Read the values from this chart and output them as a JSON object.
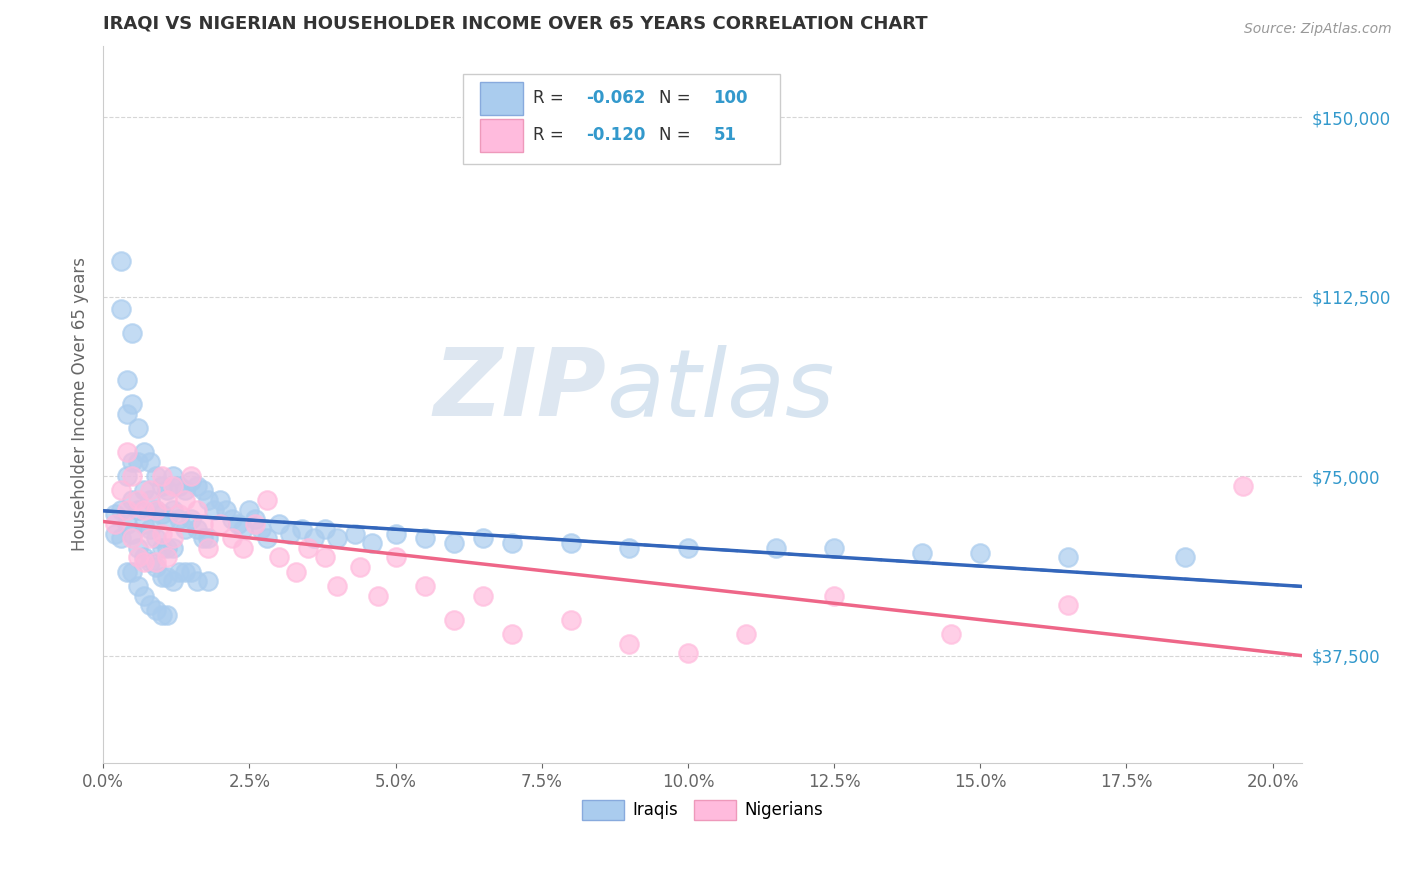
{
  "title": "IRAQI VS NIGERIAN HOUSEHOLDER INCOME OVER 65 YEARS CORRELATION CHART",
  "source": "Source: ZipAtlas.com",
  "ylabel": "Householder Income Over 65 years",
  "xlabel_ticks": [
    "0.0%",
    "2.5%",
    "5.0%",
    "7.5%",
    "10.0%",
    "12.5%",
    "15.0%",
    "17.5%",
    "20.0%"
  ],
  "ytick_labels": [
    "$37,500",
    "$75,000",
    "$112,500",
    "$150,000"
  ],
  "ytick_values": [
    37500,
    75000,
    112500,
    150000
  ],
  "xlim": [
    0.0,
    0.205
  ],
  "ylim": [
    15000,
    165000
  ],
  "legend_labels": [
    "Iraqis",
    "Nigerians"
  ],
  "iraqi_color": "#aaccee",
  "nigerian_color": "#ffbbdd",
  "iraqi_line_color": "#3366bb",
  "nigerian_line_color": "#ee6688",
  "R_iraqi": -0.062,
  "N_iraqi": 100,
  "R_nigerian": -0.12,
  "N_nigerian": 51,
  "background_color": "#ffffff",
  "grid_color": "#cccccc",
  "title_color": "#333333",
  "right_tick_color": "#3399cc",
  "watermark_zip_color": "#d0d8e8",
  "watermark_atlas_color": "#b8cce4",
  "iraqi_x": [
    0.002,
    0.002,
    0.003,
    0.003,
    0.003,
    0.003,
    0.004,
    0.004,
    0.004,
    0.004,
    0.004,
    0.005,
    0.005,
    0.005,
    0.005,
    0.005,
    0.005,
    0.006,
    0.006,
    0.006,
    0.006,
    0.006,
    0.007,
    0.007,
    0.007,
    0.007,
    0.007,
    0.008,
    0.008,
    0.008,
    0.008,
    0.008,
    0.009,
    0.009,
    0.009,
    0.009,
    0.009,
    0.01,
    0.01,
    0.01,
    0.01,
    0.01,
    0.011,
    0.011,
    0.011,
    0.011,
    0.011,
    0.012,
    0.012,
    0.012,
    0.012,
    0.013,
    0.013,
    0.013,
    0.014,
    0.014,
    0.014,
    0.015,
    0.015,
    0.015,
    0.016,
    0.016,
    0.016,
    0.017,
    0.017,
    0.018,
    0.018,
    0.018,
    0.019,
    0.02,
    0.021,
    0.022,
    0.023,
    0.024,
    0.025,
    0.026,
    0.027,
    0.028,
    0.03,
    0.032,
    0.034,
    0.036,
    0.038,
    0.04,
    0.043,
    0.046,
    0.05,
    0.055,
    0.06,
    0.065,
    0.07,
    0.08,
    0.09,
    0.1,
    0.115,
    0.125,
    0.14,
    0.15,
    0.165,
    0.185
  ],
  "iraqi_y": [
    67000,
    63000,
    120000,
    110000,
    68000,
    62000,
    95000,
    88000,
    75000,
    65000,
    55000,
    105000,
    90000,
    78000,
    70000,
    63000,
    55000,
    85000,
    78000,
    68000,
    60000,
    52000,
    80000,
    72000,
    65000,
    58000,
    50000,
    78000,
    70000,
    64000,
    57000,
    48000,
    75000,
    68000,
    62000,
    56000,
    47000,
    73000,
    67000,
    60000,
    54000,
    46000,
    72000,
    66000,
    60000,
    54000,
    46000,
    75000,
    68000,
    60000,
    53000,
    73000,
    66000,
    55000,
    72000,
    64000,
    55000,
    74000,
    66000,
    55000,
    73000,
    64000,
    53000,
    72000,
    62000,
    70000,
    62000,
    53000,
    68000,
    70000,
    68000,
    66000,
    65000,
    64000,
    68000,
    66000,
    64000,
    62000,
    65000,
    63000,
    64000,
    62000,
    64000,
    62000,
    63000,
    61000,
    63000,
    62000,
    61000,
    62000,
    61000,
    61000,
    60000,
    60000,
    60000,
    60000,
    59000,
    59000,
    58000,
    58000
  ],
  "nigerian_x": [
    0.002,
    0.003,
    0.004,
    0.004,
    0.005,
    0.005,
    0.006,
    0.006,
    0.007,
    0.007,
    0.008,
    0.008,
    0.009,
    0.009,
    0.01,
    0.01,
    0.011,
    0.011,
    0.012,
    0.012,
    0.013,
    0.014,
    0.015,
    0.016,
    0.017,
    0.018,
    0.02,
    0.022,
    0.024,
    0.026,
    0.028,
    0.03,
    0.033,
    0.035,
    0.038,
    0.04,
    0.044,
    0.047,
    0.05,
    0.055,
    0.06,
    0.065,
    0.07,
    0.08,
    0.09,
    0.1,
    0.11,
    0.125,
    0.145,
    0.165,
    0.195
  ],
  "nigerian_y": [
    65000,
    72000,
    80000,
    68000,
    75000,
    62000,
    70000,
    58000,
    68000,
    57000,
    72000,
    62000,
    68000,
    57000,
    75000,
    63000,
    70000,
    58000,
    73000,
    62000,
    67000,
    70000,
    75000,
    68000,
    65000,
    60000,
    65000,
    62000,
    60000,
    65000,
    70000,
    58000,
    55000,
    60000,
    58000,
    52000,
    56000,
    50000,
    58000,
    52000,
    45000,
    50000,
    42000,
    45000,
    40000,
    38000,
    42000,
    50000,
    42000,
    48000,
    73000
  ]
}
